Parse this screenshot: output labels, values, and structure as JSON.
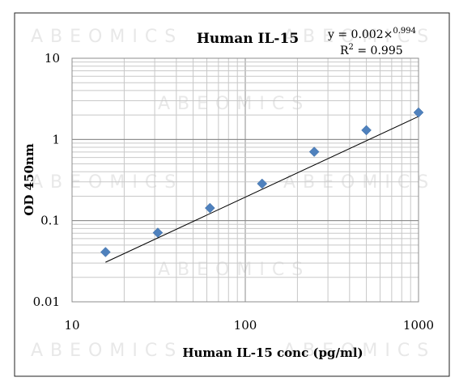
{
  "watermark": "ABEOMICS",
  "chart_data": {
    "type": "scatter",
    "title": "Human IL-15",
    "xlabel": "Human IL-15 conc (pg/ml)",
    "ylabel": "OD 450nm",
    "x_scale": "log",
    "y_scale": "log",
    "xlim": [
      10,
      1000
    ],
    "ylim": [
      0.01,
      10
    ],
    "x_ticks": [
      "10",
      "100",
      "1000"
    ],
    "y_ticks": [
      "0.01",
      "0.1",
      "1",
      "10"
    ],
    "grid": true,
    "series": [
      {
        "marker": "diamond",
        "color": "#4f81bd",
        "x": [
          15.6,
          31.25,
          62.5,
          125,
          250,
          500,
          1000
        ],
        "y": [
          0.041,
          0.071,
          0.143,
          0.285,
          0.705,
          1.3,
          2.15
        ]
      }
    ],
    "trendline": {
      "type": "power",
      "coefficient": 0.002,
      "exponent": 0.994,
      "equation_text": "y = 0.002×",
      "exponent_text": "0.994",
      "r2_prefix": "R",
      "r2_sup": "2",
      "r2_text": " = 0.995"
    }
  }
}
